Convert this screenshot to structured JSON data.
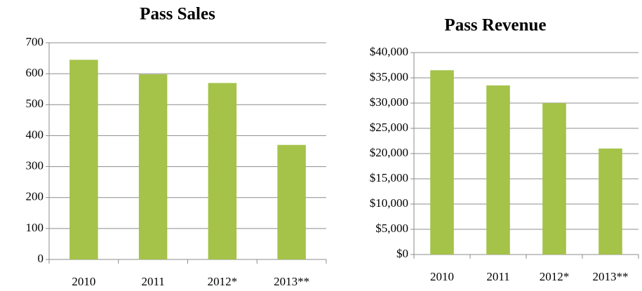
{
  "chart_data": [
    {
      "type": "bar",
      "title": "Pass Sales",
      "categories": [
        "2010",
        "2011",
        "2012*",
        "2013**"
      ],
      "values": [
        645,
        598,
        570,
        370
      ],
      "color": "#a5c249",
      "ylim": [
        0,
        700
      ],
      "yticks": [
        0,
        100,
        200,
        300,
        400,
        500,
        600,
        700
      ],
      "grid": true
    },
    {
      "type": "bar",
      "title": "Pass Revenue",
      "categories": [
        "2010",
        "2011",
        "2012*",
        "2013**"
      ],
      "values": [
        36500,
        33500,
        30000,
        21000
      ],
      "color": "#a5c249",
      "ylim": [
        0,
        40000
      ],
      "yticks": [
        {
          "value": 0,
          "label": "$0"
        },
        {
          "value": 5000,
          "label": "$5,000"
        },
        {
          "value": 10000,
          "label": "$10,000"
        },
        {
          "value": 15000,
          "label": "$15,000"
        },
        {
          "value": 20000,
          "label": "$20,000"
        },
        {
          "value": 25000,
          "label": "$25,000"
        },
        {
          "value": 30000,
          "label": "$30,000"
        },
        {
          "value": 35000,
          "label": "$35,000"
        },
        {
          "value": 40000,
          "label": "$40,000"
        }
      ],
      "grid": true
    }
  ]
}
